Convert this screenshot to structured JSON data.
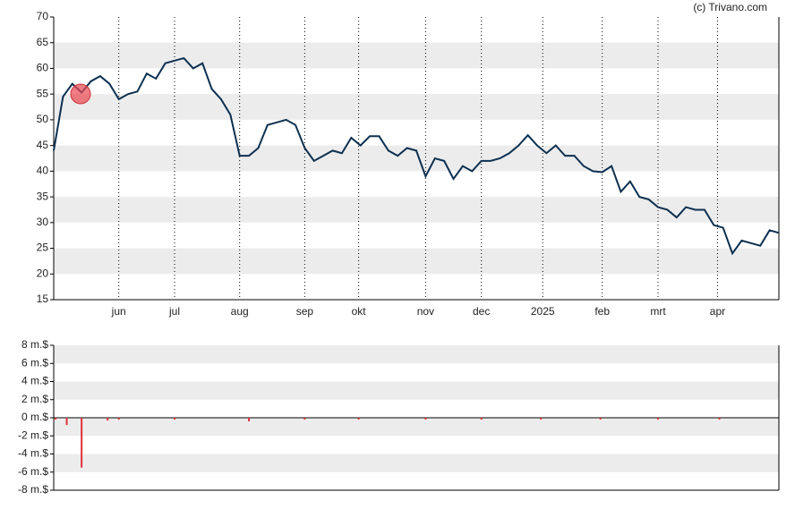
{
  "credit": "(c) Trivano.com",
  "chart_data": [
    {
      "type": "line",
      "color": "#0d3050",
      "grid": true,
      "x": [
        0,
        5,
        10,
        15,
        20,
        25,
        30,
        35,
        40,
        45,
        50,
        55,
        60,
        65,
        70,
        75,
        80,
        85,
        90,
        95,
        100,
        105,
        110,
        115,
        120,
        125,
        130,
        135,
        140,
        145,
        150,
        155,
        160,
        165,
        170,
        175,
        180,
        185,
        190,
        195,
        200,
        205,
        210,
        215,
        220,
        225,
        230,
        235,
        240,
        245,
        250,
        255,
        260,
        265,
        270,
        275,
        280,
        285,
        290,
        295,
        300,
        305,
        310,
        315,
        320,
        325,
        330,
        335,
        340,
        345,
        350,
        355,
        360,
        365,
        370,
        375,
        380,
        385,
        390
      ],
      "values": [
        44,
        54.5,
        57,
        55.3,
        57.5,
        58.5,
        57,
        54,
        55,
        55.5,
        59,
        58,
        61,
        61.5,
        62,
        60,
        61,
        56,
        54,
        51,
        43,
        43,
        44.5,
        49,
        49.5,
        50,
        49,
        44.5,
        42,
        43,
        44,
        43.5,
        46.5,
        45,
        46.8,
        46.8,
        44,
        43,
        44.5,
        44,
        39,
        42.5,
        42,
        38.5,
        41,
        40,
        42,
        42,
        42.5,
        43.5,
        45,
        47,
        45,
        43.5,
        45,
        43,
        43,
        41,
        40,
        39.8,
        41,
        36,
        38,
        35,
        34.5,
        33,
        32.5,
        31,
        33,
        32.5,
        32.5,
        29.5,
        29,
        24,
        26.5,
        26,
        25.5,
        28.5,
        28
      ],
      "xlim": [
        0,
        390
      ],
      "xticks": [
        {
          "value": 35,
          "label": "jun"
        },
        {
          "value": 65,
          "label": "jul"
        },
        {
          "value": 100,
          "label": "aug"
        },
        {
          "value": 135,
          "label": "sep"
        },
        {
          "value": 164,
          "label": "okt"
        },
        {
          "value": 200,
          "label": "nov"
        },
        {
          "value": 230,
          "label": "dec"
        },
        {
          "value": 263,
          "label": "2025"
        },
        {
          "value": 295,
          "label": "feb"
        },
        {
          "value": 325,
          "label": "mrt"
        },
        {
          "value": 357,
          "label": "apr"
        }
      ],
      "ylim": [
        15,
        70
      ],
      "yticks": [
        15,
        20,
        25,
        30,
        35,
        40,
        45,
        50,
        55,
        60,
        65,
        70
      ]
    },
    {
      "type": "bar",
      "color": "#e0303a",
      "grid": true,
      "x": [
        1,
        7,
        15,
        29,
        35,
        65,
        105,
        135,
        164,
        200,
        230,
        262,
        294,
        325,
        358
      ],
      "values": [
        -0.2,
        -0.8,
        -5.5,
        -0.3,
        -0.2,
        -0.2,
        -0.4,
        -0.2,
        -0.2,
        -0.2,
        -0.2,
        -0.2,
        -0.2,
        -0.2,
        -0.2
      ],
      "xlim": [
        0,
        390
      ],
      "ylim": [
        -8,
        8
      ],
      "yticks": [
        {
          "value": -8,
          "label": "-8 m.$"
        },
        {
          "value": -6,
          "label": "-6 m.$"
        },
        {
          "value": -4,
          "label": "-4 m.$"
        },
        {
          "value": -2,
          "label": "-2 m.$"
        },
        {
          "value": 0,
          "label": "0 m.$"
        },
        {
          "value": 2,
          "label": "2 m.$"
        },
        {
          "value": 4,
          "label": "4 m.$"
        },
        {
          "value": 6,
          "label": "6 m.$"
        },
        {
          "value": 8,
          "label": "8 m.$"
        }
      ]
    }
  ]
}
